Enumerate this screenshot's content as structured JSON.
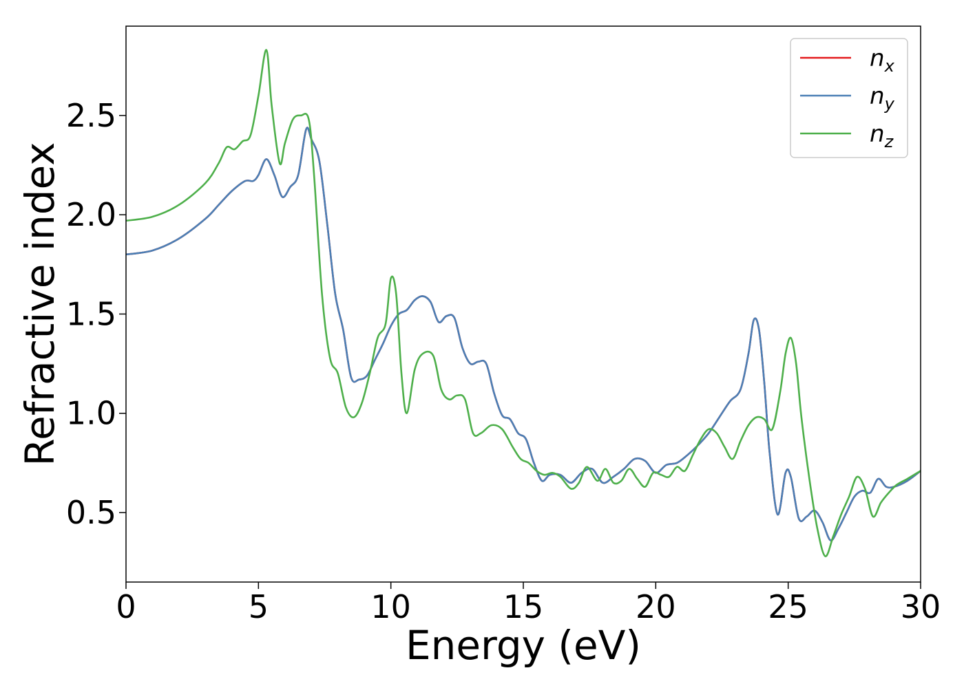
{
  "chart_data": {
    "type": "line",
    "title": "",
    "xlabel": "Energy (eV)",
    "ylabel": "Refractive index",
    "xlim": [
      0,
      30
    ],
    "ylim": [
      0.15,
      2.95
    ],
    "xticks": [
      0,
      5,
      10,
      15,
      20,
      25,
      30
    ],
    "yticks": [
      0.5,
      1.0,
      1.5,
      2.0,
      2.5
    ],
    "xtick_labels": [
      "0",
      "5",
      "10",
      "15",
      "20",
      "25",
      "30"
    ],
    "ytick_labels": [
      "0.5",
      "1.0",
      "1.5",
      "2.0",
      "2.5"
    ],
    "grid": false,
    "legend_position": "top-right",
    "series": [
      {
        "name": "n_x",
        "legend_main": "n",
        "legend_sub": "x",
        "color": "#e41a1c",
        "x": [
          0,
          1,
          2,
          3,
          3.5,
          4,
          4.5,
          4.8,
          5.0,
          5.3,
          5.6,
          5.9,
          6.2,
          6.5,
          6.8,
          7.0,
          7.3,
          7.6,
          7.9,
          8.2,
          8.5,
          8.8,
          9.1,
          9.4,
          9.7,
          10.0,
          10.3,
          10.6,
          10.9,
          11.2,
          11.5,
          11.8,
          12.1,
          12.4,
          12.7,
          13.0,
          13.3,
          13.6,
          13.9,
          14.2,
          14.5,
          14.8,
          15.1,
          15.4,
          15.7,
          16.0,
          16.4,
          16.8,
          17.2,
          17.6,
          18.0,
          18.4,
          18.8,
          19.2,
          19.6,
          20.0,
          20.4,
          20.8,
          21.2,
          21.6,
          22.0,
          22.4,
          22.8,
          23.2,
          23.5,
          23.7,
          23.9,
          24.1,
          24.3,
          24.6,
          24.9,
          25.1,
          25.4,
          25.7,
          26.0,
          26.3,
          26.6,
          26.9,
          27.2,
          27.5,
          27.8,
          28.1,
          28.4,
          28.7,
          29.0,
          29.5,
          30.0
        ],
        "y": [
          1.8,
          1.82,
          1.88,
          1.98,
          2.05,
          2.12,
          2.17,
          2.17,
          2.2,
          2.28,
          2.2,
          2.09,
          2.14,
          2.2,
          2.43,
          2.38,
          2.27,
          1.95,
          1.6,
          1.42,
          1.18,
          1.17,
          1.19,
          1.27,
          1.35,
          1.44,
          1.5,
          1.52,
          1.57,
          1.59,
          1.56,
          1.46,
          1.49,
          1.48,
          1.33,
          1.25,
          1.26,
          1.25,
          1.1,
          0.99,
          0.97,
          0.9,
          0.87,
          0.75,
          0.66,
          0.69,
          0.69,
          0.65,
          0.7,
          0.72,
          0.65,
          0.68,
          0.72,
          0.77,
          0.76,
          0.7,
          0.74,
          0.75,
          0.79,
          0.84,
          0.9,
          0.98,
          1.06,
          1.12,
          1.3,
          1.47,
          1.42,
          1.15,
          0.8,
          0.49,
          0.7,
          0.68,
          0.47,
          0.48,
          0.51,
          0.45,
          0.36,
          0.42,
          0.5,
          0.58,
          0.61,
          0.6,
          0.67,
          0.63,
          0.63,
          0.66,
          0.71
        ]
      },
      {
        "name": "n_y",
        "legend_main": "n",
        "legend_sub": "y",
        "color": "#4a7fb5",
        "x": [
          0,
          1,
          2,
          3,
          3.5,
          4,
          4.5,
          4.8,
          5.0,
          5.3,
          5.6,
          5.9,
          6.2,
          6.5,
          6.8,
          7.0,
          7.3,
          7.6,
          7.9,
          8.2,
          8.5,
          8.8,
          9.1,
          9.4,
          9.7,
          10.0,
          10.3,
          10.6,
          10.9,
          11.2,
          11.5,
          11.8,
          12.1,
          12.4,
          12.7,
          13.0,
          13.3,
          13.6,
          13.9,
          14.2,
          14.5,
          14.8,
          15.1,
          15.4,
          15.7,
          16.0,
          16.4,
          16.8,
          17.2,
          17.6,
          18.0,
          18.4,
          18.8,
          19.2,
          19.6,
          20.0,
          20.4,
          20.8,
          21.2,
          21.6,
          22.0,
          22.4,
          22.8,
          23.2,
          23.5,
          23.7,
          23.9,
          24.1,
          24.3,
          24.6,
          24.9,
          25.1,
          25.4,
          25.7,
          26.0,
          26.3,
          26.6,
          26.9,
          27.2,
          27.5,
          27.8,
          28.1,
          28.4,
          28.7,
          29.0,
          29.5,
          30.0
        ],
        "y": [
          1.8,
          1.82,
          1.88,
          1.98,
          2.05,
          2.12,
          2.17,
          2.17,
          2.2,
          2.28,
          2.2,
          2.09,
          2.14,
          2.2,
          2.43,
          2.38,
          2.27,
          1.95,
          1.6,
          1.42,
          1.18,
          1.17,
          1.19,
          1.27,
          1.35,
          1.44,
          1.5,
          1.52,
          1.57,
          1.59,
          1.56,
          1.46,
          1.49,
          1.48,
          1.33,
          1.25,
          1.26,
          1.25,
          1.1,
          0.99,
          0.97,
          0.9,
          0.87,
          0.75,
          0.66,
          0.69,
          0.69,
          0.65,
          0.7,
          0.72,
          0.65,
          0.68,
          0.72,
          0.77,
          0.76,
          0.7,
          0.74,
          0.75,
          0.79,
          0.84,
          0.9,
          0.98,
          1.06,
          1.12,
          1.3,
          1.47,
          1.42,
          1.15,
          0.8,
          0.49,
          0.7,
          0.68,
          0.47,
          0.48,
          0.51,
          0.45,
          0.36,
          0.42,
          0.5,
          0.58,
          0.61,
          0.6,
          0.67,
          0.63,
          0.63,
          0.66,
          0.71
        ]
      },
      {
        "name": "n_z",
        "legend_main": "n",
        "legend_sub": "z",
        "color": "#4daf4a",
        "x": [
          0,
          1,
          2,
          3,
          3.5,
          3.8,
          4.1,
          4.4,
          4.7,
          5.0,
          5.3,
          5.5,
          5.8,
          6.0,
          6.3,
          6.6,
          6.9,
          7.1,
          7.4,
          7.7,
          8.0,
          8.3,
          8.6,
          8.9,
          9.2,
          9.5,
          9.8,
          10.0,
          10.2,
          10.4,
          10.6,
          10.9,
          11.2,
          11.6,
          11.9,
          12.2,
          12.5,
          12.8,
          13.1,
          13.4,
          13.8,
          14.2,
          14.6,
          14.9,
          15.2,
          15.5,
          15.8,
          16.1,
          16.4,
          16.8,
          17.1,
          17.4,
          17.8,
          18.1,
          18.4,
          18.7,
          19.0,
          19.3,
          19.6,
          19.9,
          20.2,
          20.5,
          20.8,
          21.1,
          21.4,
          21.7,
          22.0,
          22.3,
          22.6,
          22.9,
          23.2,
          23.5,
          23.8,
          24.1,
          24.4,
          24.7,
          24.9,
          25.1,
          25.3,
          25.5,
          25.8,
          26.1,
          26.4,
          26.7,
          27.0,
          27.3,
          27.6,
          27.9,
          28.2,
          28.5,
          28.8,
          29.1,
          29.5,
          30.0
        ],
        "y": [
          1.97,
          1.99,
          2.05,
          2.16,
          2.26,
          2.34,
          2.33,
          2.37,
          2.4,
          2.6,
          2.83,
          2.55,
          2.26,
          2.36,
          2.48,
          2.5,
          2.48,
          2.2,
          1.6,
          1.28,
          1.2,
          1.03,
          0.98,
          1.05,
          1.2,
          1.38,
          1.45,
          1.68,
          1.6,
          1.2,
          1.0,
          1.22,
          1.3,
          1.29,
          1.12,
          1.07,
          1.09,
          1.07,
          0.9,
          0.9,
          0.94,
          0.92,
          0.83,
          0.77,
          0.75,
          0.71,
          0.69,
          0.7,
          0.68,
          0.62,
          0.65,
          0.73,
          0.66,
          0.72,
          0.65,
          0.66,
          0.72,
          0.67,
          0.63,
          0.7,
          0.69,
          0.68,
          0.73,
          0.71,
          0.79,
          0.87,
          0.92,
          0.9,
          0.83,
          0.77,
          0.86,
          0.94,
          0.98,
          0.97,
          0.92,
          1.11,
          1.3,
          1.38,
          1.25,
          0.98,
          0.67,
          0.42,
          0.28,
          0.38,
          0.49,
          0.58,
          0.68,
          0.62,
          0.48,
          0.55,
          0.6,
          0.64,
          0.67,
          0.71
        ]
      }
    ]
  }
}
